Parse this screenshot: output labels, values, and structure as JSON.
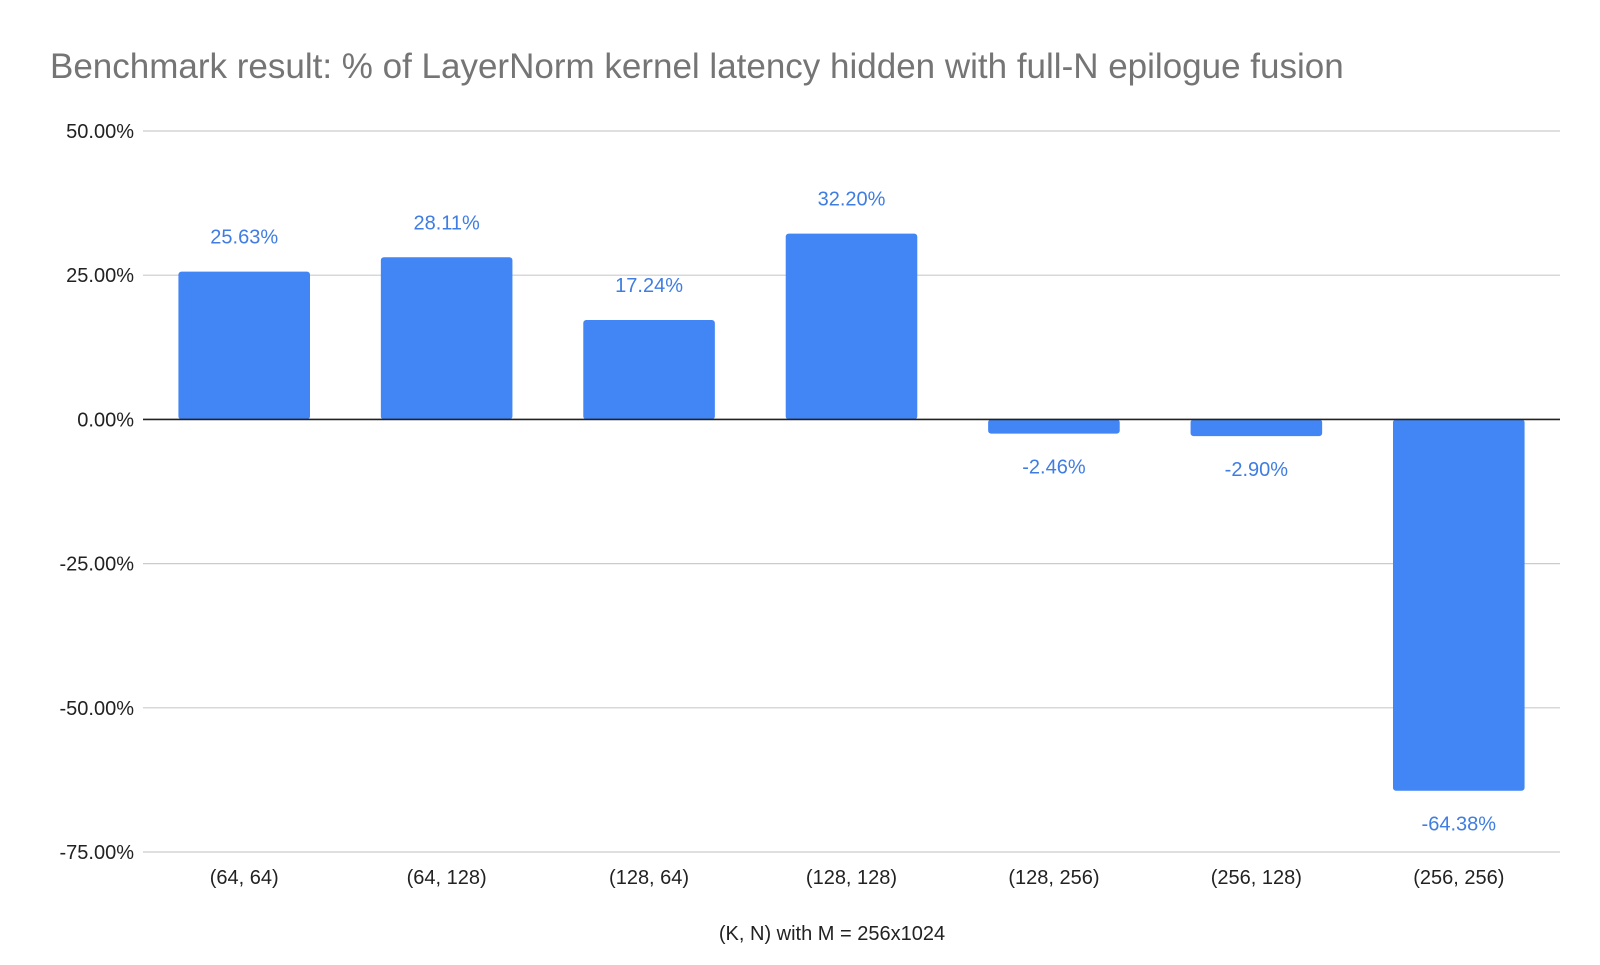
{
  "chart_data": {
    "type": "bar",
    "title": "Benchmark result: % of LayerNorm kernel latency hidden with full-N epilogue fusion",
    "xlabel": "(K, N) with M = 256x1024",
    "ylabel": "",
    "categories": [
      "(64, 64)",
      "(64, 128)",
      "(128, 64)",
      "(128, 128)",
      "(128, 256)",
      "(256, 128)",
      "(256, 256)"
    ],
    "series": [
      {
        "values": [
          25.63,
          28.11,
          17.24,
          32.2,
          -2.46,
          -2.9,
          -64.38
        ],
        "value_labels": [
          "25.63%",
          "28.11%",
          "17.24%",
          "32.20%",
          "-2.46%",
          "-2.90%",
          "-64.38%"
        ],
        "color": "#4285f4"
      }
    ],
    "ylim": [
      -75,
      50
    ],
    "yticks": [
      50,
      25,
      0,
      -25,
      -50,
      -75
    ],
    "ytick_labels": [
      "50.00%",
      "25.00%",
      "0.00%",
      "-25.00%",
      "-50.00%",
      "-75.00%"
    ],
    "grid": true,
    "legend": "none",
    "colors": {
      "bar": "#4285f4",
      "data_label": "#3f7de3",
      "title": "#757575",
      "gridline": "#cccccc",
      "zero_line": "#222222"
    }
  }
}
